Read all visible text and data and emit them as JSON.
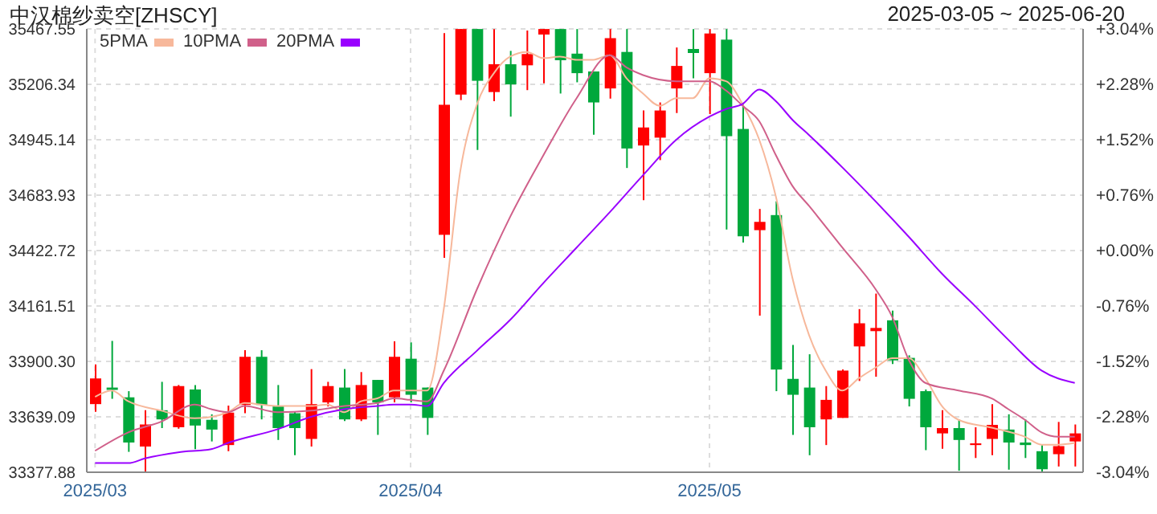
{
  "chart_data": {
    "type": "candlestick",
    "title": "中汉棉纱卖空[ZHSCY]",
    "subtitle": "2025-03-05 ~ 2025-06-20",
    "categories": [
      "2025/03",
      null,
      null,
      null,
      null,
      null,
      null,
      null,
      null,
      null,
      null,
      null,
      null,
      null,
      null,
      null,
      null,
      null,
      null,
      "2025/04",
      null,
      null,
      null,
      null,
      null,
      null,
      null,
      null,
      null,
      null,
      null,
      null,
      null,
      null,
      null,
      null,
      null,
      "2025/05",
      null,
      null,
      null,
      null,
      null,
      null,
      null,
      null,
      null,
      null,
      null,
      null,
      null,
      null,
      null,
      null,
      null,
      null,
      null,
      null,
      null,
      null
    ],
    "ohlc": [
      [
        33699,
        33886,
        33663,
        33820
      ],
      [
        33777,
        33997,
        33724,
        33766
      ],
      [
        33731,
        33760,
        33474,
        33518
      ],
      [
        33499,
        33670,
        33378,
        33603
      ],
      [
        33670,
        33804,
        33586,
        33627
      ],
      [
        33590,
        33789,
        33583,
        33784
      ],
      [
        33768,
        33789,
        33487,
        33598
      ],
      [
        33625,
        33651,
        33523,
        33579
      ],
      [
        33506,
        33692,
        33477,
        33659
      ],
      [
        33695,
        33953,
        33656,
        33922
      ],
      [
        33922,
        33953,
        33627,
        33695
      ],
      [
        33688,
        33789,
        33530,
        33586
      ],
      [
        33656,
        33663,
        33458,
        33586
      ],
      [
        33535,
        33864,
        33499,
        33699
      ],
      [
        33707,
        33804,
        33688,
        33784
      ],
      [
        33777,
        33864,
        33619,
        33627
      ],
      [
        33627,
        33850,
        33619,
        33789
      ],
      [
        33813,
        33813,
        33554,
        33707
      ],
      [
        33731,
        33995,
        33707,
        33922
      ],
      [
        33913,
        33990,
        33707,
        33743
      ],
      [
        33777,
        33777,
        33554,
        33634
      ],
      [
        34497,
        35448,
        34389,
        35110
      ],
      [
        35158,
        35467,
        35132,
        35467
      ],
      [
        35467,
        35467,
        34897,
        35223
      ],
      [
        35170,
        35467,
        35127,
        35301
      ],
      [
        35301,
        35364,
        35054,
        35206
      ],
      [
        35296,
        35460,
        35179,
        35349
      ],
      [
        35441,
        35467,
        35211,
        35467
      ],
      [
        35467,
        35467,
        35163,
        35320
      ],
      [
        35351,
        35467,
        35216,
        35259
      ],
      [
        35267,
        35267,
        34969,
        35121
      ],
      [
        35187,
        35467,
        35139,
        35424
      ],
      [
        35359,
        35467,
        34812,
        34904
      ],
      [
        34918,
        35083,
        34660,
        35003
      ],
      [
        34955,
        35121,
        34849,
        35083
      ],
      [
        35187,
        35380,
        35071,
        35293
      ],
      [
        35373,
        35467,
        35235,
        35354
      ],
      [
        35259,
        35467,
        35066,
        35446
      ],
      [
        35417,
        35467,
        34522,
        34962
      ],
      [
        34996,
        35114,
        34461,
        34490
      ],
      [
        34519,
        34619,
        34116,
        34558
      ],
      [
        34590,
        34655,
        33760,
        33862
      ],
      [
        33818,
        33978,
        33554,
        33743
      ],
      [
        33777,
        33934,
        33458,
        33590
      ],
      [
        33627,
        33784,
        33506,
        33719
      ],
      [
        33634,
        33862,
        33634,
        33857
      ],
      [
        33971,
        34147,
        33808,
        34080
      ],
      [
        34043,
        34220,
        33828,
        34058
      ],
      [
        34094,
        34140,
        33888,
        33905
      ],
      [
        33917,
        33929,
        33688,
        33724
      ],
      [
        33760,
        33768,
        33482,
        33590
      ],
      [
        33561,
        33670,
        33489,
        33586
      ],
      [
        33586,
        33627,
        33385,
        33530
      ],
      [
        33506,
        33590,
        33445,
        33514
      ],
      [
        33535,
        33699,
        33458,
        33601
      ],
      [
        33579,
        33651,
        33390,
        33518
      ],
      [
        33518,
        33627,
        33445,
        33506
      ],
      [
        33477,
        33506,
        33378,
        33392
      ],
      [
        33463,
        33615,
        33405,
        33501
      ],
      [
        33523,
        33603,
        33405,
        33561
      ]
    ],
    "series": [
      {
        "name": "5PMA",
        "type": "line",
        "color": "#f7b89b",
        "values": [
          33733,
          33763,
          33712,
          null,
          33668,
          null,
          33632,
          33639,
          33661,
          33704,
          33697,
          33690,
          null,
          33690,
          33697,
          33661,
          33712,
          33726,
          33763,
          33763,
          33763,
          34147,
          34800,
          35112,
          35257,
          35337,
          35359,
          35330,
          35337,
          35322,
          35322,
          35344,
          35235,
          35163,
          35105,
          35141,
          35141,
          35235,
          35221,
          35112,
          34945,
          34677,
          34292,
          34024,
          33857,
          33763,
          33821,
          33871,
          33915,
          33915,
          33821,
          33690,
          33625,
          null,
          33588,
          null,
          33545,
          33508,
          33508,
          33516
        ]
      },
      {
        "name": "10PMA",
        "type": "line",
        "color": "#d0608a",
        "values": [
          33479,
          null,
          33566,
          null,
          33617,
          null,
          33697,
          33675,
          33661,
          33690,
          null,
          33661,
          null,
          33668,
          null,
          33690,
          null,
          33704,
          33726,
          33719,
          33712,
          33857,
          null,
          34241,
          null,
          34582,
          null,
          34872,
          null,
          35141,
          null,
          35344,
          35286,
          35250,
          null,
          35221,
          null,
          35221,
          35177,
          35105,
          35032,
          34872,
          34727,
          34633,
          null,
          34437,
          null,
          34241,
          34111,
          33908,
          33799,
          null,
          33763,
          null,
          33726,
          33675,
          33625,
          33566,
          33545,
          33545
        ]
      },
      {
        "name": "20PMA",
        "type": "line",
        "color": "#9900ff",
        "values": [
          33421,
          null,
          33421,
          33443,
          null,
          33472,
          null,
          33487,
          33516,
          null,
          null,
          33581,
          null,
          33639,
          null,
          33675,
          null,
          33690,
          33697,
          33697,
          33690,
          33799,
          null,
          33951,
          null,
          34096,
          null,
          34270,
          null,
          34437,
          null,
          34604,
          null,
          34778,
          null,
          34945,
          null,
          35054,
          35090,
          35114,
          35182,
          35127,
          35039,
          34967,
          null,
          34815,
          null,
          34655,
          null,
          34488,
          null,
          34314,
          null,
          34161,
          null,
          34002,
          null,
          33857,
          null,
          33799
        ]
      }
    ],
    "ylim": [
      33377.88,
      35467.55
    ],
    "yticks": [
      {
        "value": 33377.88,
        "label": "33377.88"
      },
      {
        "value": 33639.09,
        "label": "33639.09"
      },
      {
        "value": 33900.3,
        "label": "33900.30"
      },
      {
        "value": 34161.51,
        "label": "34161.51"
      },
      {
        "value": 34422.72,
        "label": "34422.72"
      },
      {
        "value": 34683.93,
        "label": "34683.93"
      },
      {
        "value": 34945.14,
        "label": "34945.14"
      },
      {
        "value": 35206.34,
        "label": "35206.34"
      },
      {
        "value": 35467.55,
        "label": "35467.55"
      }
    ],
    "y2lim": [
      -3.04,
      3.04
    ],
    "y2ticks": [
      {
        "value": -3.04,
        "label": "-3.04%"
      },
      {
        "value": -2.28,
        "label": "-2.28%"
      },
      {
        "value": -1.52,
        "label": "-1.52%"
      },
      {
        "value": -0.76,
        "label": "-0.76%"
      },
      {
        "value": 0,
        "label": "+0.00%"
      },
      {
        "value": 0.76,
        "label": "+0.76%"
      },
      {
        "value": 1.52,
        "label": "+1.52%"
      },
      {
        "value": 2.28,
        "label": "+2.28%"
      },
      {
        "value": 3.04,
        "label": "+3.04%"
      }
    ],
    "grid": true,
    "legend": "top left",
    "marker": "none",
    "line_style": "solid"
  }
}
